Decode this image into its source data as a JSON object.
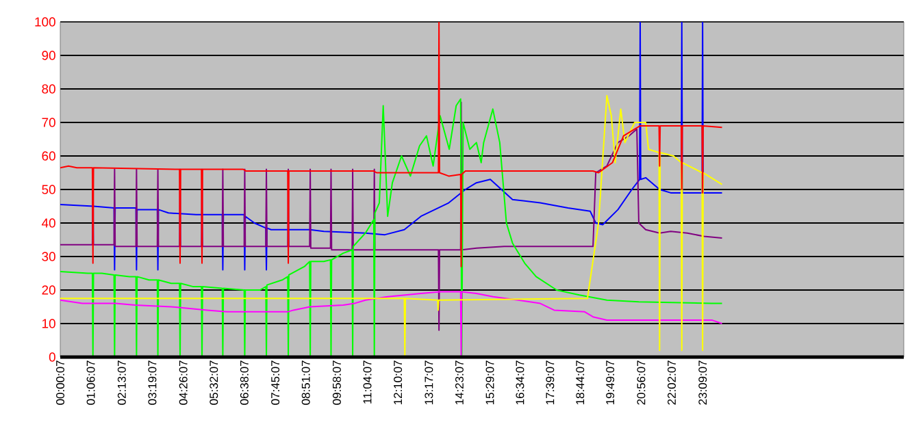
{
  "chart_data": {
    "type": "line",
    "xlim": [
      0.00194,
      30.4
    ],
    "ylim": [
      0,
      100
    ],
    "xticks": [
      {
        "value": 0.00194,
        "label": "00:00:07"
      },
      {
        "value": 1.1019,
        "label": "01:06:07"
      },
      {
        "value": 2.2186,
        "label": "02:13:07"
      },
      {
        "value": 3.3186,
        "label": "03:19:07"
      },
      {
        "value": 4.4353,
        "label": "04:26:07"
      },
      {
        "value": 5.5353,
        "label": "05:32:07"
      },
      {
        "value": 6.6353,
        "label": "06:38:07"
      },
      {
        "value": 7.7519,
        "label": "07:45:07"
      },
      {
        "value": 8.8519,
        "label": "08:51:07"
      },
      {
        "value": 9.9686,
        "label": "09:58:07"
      },
      {
        "value": 11.0686,
        "label": "11:04:07"
      },
      {
        "value": 12.1686,
        "label": "12:10:07"
      },
      {
        "value": 13.2853,
        "label": "13:17:07"
      },
      {
        "value": 14.3853,
        "label": "14:23:07"
      },
      {
        "value": 15.4853,
        "label": "15:29:07"
      },
      {
        "value": 16.5686,
        "label": "16:34:07"
      },
      {
        "value": 17.6519,
        "label": "17:39:07"
      },
      {
        "value": 18.7353,
        "label": "18:44:07"
      },
      {
        "value": 19.8186,
        "label": "19:49:07"
      },
      {
        "value": 20.9353,
        "label": "20:56:07"
      },
      {
        "value": 22.0353,
        "label": "22:02:07"
      },
      {
        "value": 23.1519,
        "label": "23:09:07"
      }
    ],
    "yticks": [
      0,
      10,
      20,
      30,
      40,
      50,
      60,
      70,
      80,
      90,
      100
    ],
    "grid": "y",
    "marker": "none",
    "line_style": "solid",
    "series": [
      {
        "color": "#ff0000",
        "x": [
          0.002,
          0.3,
          0.6,
          1.16,
          1.18,
          1.2,
          4.3,
          4.32,
          4.34,
          5.09,
          5.11,
          5.13,
          6.6,
          6.7,
          8.2,
          8.22,
          8.24,
          11.3,
          11.4,
          13.63,
          13.65,
          13.67,
          14.0,
          14.43,
          14.45,
          14.47,
          14.6,
          19.2,
          19.4,
          19.9,
          20.3,
          20.9,
          21.58,
          21.6,
          21.62,
          22.38,
          22.4,
          22.42,
          23.13,
          23.15,
          23.17,
          23.85
        ],
        "values": [
          56.5,
          57,
          56.5,
          56.5,
          28,
          56.5,
          56,
          28,
          56,
          56,
          28,
          56,
          56,
          55.5,
          55.5,
          28,
          55.5,
          55.5,
          55,
          55,
          100,
          55,
          54,
          54.5,
          27,
          54.5,
          55.5,
          55.5,
          55,
          58,
          66,
          69,
          69,
          57,
          69,
          69,
          50,
          69,
          69,
          49,
          69,
          68.5
        ]
      },
      {
        "color": "#0000ff",
        "x": [
          0.002,
          1.2,
          1.94,
          1.96,
          1.98,
          2.73,
          2.75,
          2.77,
          3.5,
          3.52,
          3.54,
          3.9,
          4.9,
          5.84,
          5.86,
          5.88,
          6.63,
          6.65,
          6.67,
          7.0,
          7.41,
          7.43,
          7.45,
          7.6,
          9.0,
          9.5,
          11.0,
          11.7,
          12.4,
          13.0,
          14.0,
          14.6,
          15.0,
          15.5,
          15.9,
          16.3,
          17.3,
          18.3,
          19.1,
          19.3,
          19.55,
          20.1,
          20.6,
          20.88,
          20.9,
          20.92,
          21.1,
          21.6,
          22.0,
          22.38,
          22.4,
          22.42,
          23.13,
          23.15,
          23.17,
          23.85
        ],
        "values": [
          45.5,
          45,
          44.5,
          26,
          44.5,
          44.5,
          26,
          44,
          44,
          26,
          44,
          43,
          42.5,
          42.5,
          26,
          42.5,
          42.5,
          26,
          42,
          40,
          38.5,
          26,
          38.5,
          38,
          38,
          37.5,
          37,
          36.5,
          38,
          42,
          46,
          50,
          52,
          53,
          50,
          47,
          46,
          44.5,
          43.5,
          40,
          39.5,
          44,
          50,
          53,
          100,
          53,
          53.5,
          50,
          49,
          49,
          100,
          49,
          49,
          100,
          49,
          49
        ]
      },
      {
        "color": "#800080",
        "x": [
          0.002,
          1.16,
          1.18,
          1.2,
          1.94,
          1.96,
          1.98,
          2.73,
          2.75,
          2.77,
          3.5,
          3.52,
          3.54,
          4.3,
          4.32,
          4.34,
          5.09,
          5.11,
          5.13,
          5.84,
          5.86,
          5.88,
          6.63,
          6.65,
          6.67,
          7.41,
          7.43,
          7.45,
          8.2,
          8.22,
          8.24,
          8.99,
          9.01,
          9.03,
          9.74,
          9.76,
          9.78,
          10.52,
          10.54,
          10.56,
          11.3,
          11.32,
          11.34,
          13.63,
          13.65,
          13.67,
          14.43,
          14.45,
          14.47,
          15.0,
          16.0,
          19.2,
          19.3,
          19.7,
          20.1,
          20.5,
          20.78,
          20.85,
          21.1,
          21.6,
          22.0,
          22.6,
          23.2,
          23.85
        ],
        "values": [
          33.5,
          33.5,
          56,
          33.5,
          33.5,
          56,
          33,
          33,
          56,
          33,
          33,
          56,
          33,
          33,
          56,
          33,
          33,
          56,
          33,
          33,
          56,
          33,
          33,
          56,
          33,
          33,
          56,
          33,
          33,
          56,
          33,
          33,
          56,
          32.5,
          32.5,
          56,
          32,
          32,
          56,
          32,
          32,
          56,
          32,
          32,
          8,
          32,
          32,
          76,
          32,
          32.5,
          33,
          33,
          55,
          57,
          64,
          66,
          68,
          40,
          38,
          37,
          37.5,
          37,
          36,
          35.5
        ]
      },
      {
        "color": "#00ff00",
        "x": [
          0.002,
          1.0,
          1.16,
          1.18,
          1.2,
          1.5,
          1.94,
          1.96,
          1.98,
          2.5,
          2.73,
          2.75,
          2.77,
          3.2,
          3.5,
          3.52,
          3.54,
          4.0,
          4.3,
          4.32,
          4.34,
          4.8,
          5.09,
          5.11,
          5.13,
          5.84,
          5.86,
          5.88,
          6.63,
          6.65,
          6.67,
          7.2,
          7.41,
          7.43,
          7.45,
          8.0,
          8.2,
          8.22,
          8.24,
          8.8,
          8.99,
          9.01,
          9.03,
          9.5,
          9.74,
          9.76,
          9.78,
          10.2,
          10.52,
          10.54,
          10.56,
          11.0,
          11.3,
          11.32,
          11.34,
          11.5,
          11.64,
          11.8,
          11.97,
          12.3,
          12.62,
          12.95,
          13.2,
          13.44,
          13.69,
          14.02,
          14.27,
          14.43,
          14.47,
          14.52,
          14.76,
          15.0,
          15.17,
          15.26,
          15.59,
          15.84,
          16.08,
          16.3,
          16.74,
          17.15,
          17.89,
          18.71,
          19.7,
          20.85,
          23.48,
          23.85
        ],
        "values": [
          25.5,
          25,
          25,
          0,
          25,
          25,
          24.5,
          0,
          24.5,
          24,
          24,
          0,
          24,
          23,
          23,
          0,
          23,
          22,
          22,
          0,
          22,
          21,
          21,
          0,
          21,
          20.5,
          0,
          20.5,
          20,
          0,
          20,
          20,
          21,
          0,
          21.5,
          23,
          24,
          0,
          24.5,
          27,
          28.5,
          0,
          28.5,
          28.5,
          29,
          0,
          29,
          31,
          32,
          0,
          33,
          37,
          41,
          0,
          43,
          46,
          75,
          42,
          52,
          60,
          54,
          63,
          66,
          57,
          72,
          62,
          75,
          77,
          0,
          70,
          62,
          64,
          58,
          64,
          74,
          64,
          40,
          34,
          28,
          24,
          20,
          18.5,
          17,
          16.5,
          16,
          16
        ]
      },
      {
        "color": "#ff00ff",
        "x": [
          0.002,
          0.8,
          2.0,
          2.7,
          4.0,
          5.3,
          6.0,
          8.2,
          8.4,
          9.0,
          10.2,
          10.6,
          11.0,
          11.8,
          13.0,
          13.7,
          14.43,
          14.45,
          14.47,
          15.0,
          15.6,
          16.5,
          17.3,
          17.8,
          18.9,
          19.2,
          19.7,
          23.5,
          23.85
        ],
        "values": [
          17,
          16,
          16,
          15.5,
          15,
          14,
          13.5,
          13.5,
          14,
          15,
          15.5,
          16,
          17,
          18,
          19,
          19.5,
          19.5,
          0,
          19.5,
          19,
          18,
          17,
          16,
          14,
          13.5,
          12,
          11,
          11,
          10
        ]
      },
      {
        "color": "#ffff00",
        "x": [
          0.002,
          12.4,
          12.42,
          12.44,
          13.6,
          13.62,
          13.64,
          19.0,
          19.4,
          19.7,
          19.86,
          20.0,
          20.2,
          20.35,
          20.7,
          21.1,
          21.2,
          21.58,
          21.6,
          21.62,
          22.1,
          22.38,
          22.4,
          22.42,
          23.13,
          23.15,
          23.17,
          23.85
        ],
        "values": [
          17.5,
          17.5,
          0,
          17.5,
          17,
          14,
          17,
          17.5,
          40,
          78,
          72,
          58,
          74,
          64,
          70,
          70,
          62,
          61,
          2,
          61,
          60,
          58,
          2,
          58,
          55,
          2,
          55,
          51.5
        ]
      }
    ]
  }
}
